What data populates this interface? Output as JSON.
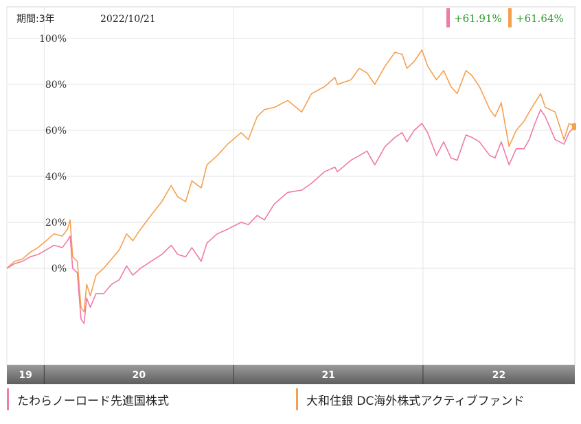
{
  "header": {
    "period_label": "期間:3年",
    "date": "2022/10/21"
  },
  "colors": {
    "series_pink": "#f07aa8",
    "series_orange": "#f5a04f",
    "returns_text": "#2a9a2a",
    "axis_band": "#7f7f7f",
    "grid": "#e3e3e3"
  },
  "chart_data": {
    "type": "line",
    "x_range": [
      "2019-10-21",
      "2022-10-21"
    ],
    "ylim": [
      -40,
      103
    ],
    "y_ticks": [
      0,
      20,
      40,
      60,
      80,
      100
    ],
    "y_tick_labels": [
      "0%",
      "20%",
      "40%",
      "60%",
      "80%",
      "100%"
    ],
    "x_ticks": [
      {
        "label": "19",
        "date": "2019-10-21"
      },
      {
        "label": "20",
        "date": "2020-01-01"
      },
      {
        "label": "21",
        "date": "2021-01-01"
      },
      {
        "label": "22",
        "date": "2022-01-01"
      }
    ],
    "grid": true,
    "series": [
      {
        "name": "たわらノーロード先進国株式",
        "color": "#f07aa8",
        "return_label": "+61.91%",
        "points": [
          [
            "2019-10-21",
            0
          ],
          [
            "2019-11-05",
            2
          ],
          [
            "2019-11-20",
            3
          ],
          [
            "2019-12-05",
            5
          ],
          [
            "2019-12-20",
            6
          ],
          [
            "2020-01-05",
            8
          ],
          [
            "2020-01-20",
            10
          ],
          [
            "2020-02-05",
            9
          ],
          [
            "2020-02-15",
            12
          ],
          [
            "2020-02-20",
            14
          ],
          [
            "2020-02-25",
            0
          ],
          [
            "2020-03-05",
            -2
          ],
          [
            "2020-03-12",
            -22
          ],
          [
            "2020-03-18",
            -24
          ],
          [
            "2020-03-23",
            -13
          ],
          [
            "2020-03-30",
            -17
          ],
          [
            "2020-04-10",
            -11
          ],
          [
            "2020-04-25",
            -11
          ],
          [
            "2020-05-10",
            -7
          ],
          [
            "2020-05-25",
            -5
          ],
          [
            "2020-06-08",
            1
          ],
          [
            "2020-06-20",
            -3
          ],
          [
            "2020-07-05",
            0
          ],
          [
            "2020-07-25",
            3
          ],
          [
            "2020-08-15",
            6
          ],
          [
            "2020-09-02",
            10
          ],
          [
            "2020-09-15",
            6
          ],
          [
            "2020-09-30",
            5
          ],
          [
            "2020-10-12",
            9
          ],
          [
            "2020-10-30",
            3
          ],
          [
            "2020-11-10",
            11
          ],
          [
            "2020-11-30",
            15
          ],
          [
            "2020-12-20",
            17
          ],
          [
            "2021-01-15",
            20
          ],
          [
            "2021-01-29",
            19
          ],
          [
            "2021-02-15",
            23
          ],
          [
            "2021-03-01",
            21
          ],
          [
            "2021-03-20",
            28
          ],
          [
            "2021-04-15",
            33
          ],
          [
            "2021-05-12",
            34
          ],
          [
            "2021-05-31",
            37
          ],
          [
            "2021-06-25",
            42
          ],
          [
            "2021-07-15",
            44
          ],
          [
            "2021-07-20",
            42
          ],
          [
            "2021-08-15",
            47
          ],
          [
            "2021-08-31",
            49
          ],
          [
            "2021-09-15",
            51
          ],
          [
            "2021-09-30",
            45
          ],
          [
            "2021-10-20",
            53
          ],
          [
            "2021-11-08",
            57
          ],
          [
            "2021-11-22",
            59
          ],
          [
            "2021-12-01",
            55
          ],
          [
            "2021-12-15",
            60
          ],
          [
            "2021-12-30",
            63
          ],
          [
            "2022-01-10",
            59
          ],
          [
            "2022-01-27",
            49
          ],
          [
            "2022-02-10",
            55
          ],
          [
            "2022-02-24",
            48
          ],
          [
            "2022-03-08",
            47
          ],
          [
            "2022-03-25",
            58
          ],
          [
            "2022-04-05",
            57
          ],
          [
            "2022-04-20",
            55
          ],
          [
            "2022-05-10",
            49
          ],
          [
            "2022-05-20",
            48
          ],
          [
            "2022-06-01",
            55
          ],
          [
            "2022-06-16",
            45
          ],
          [
            "2022-06-30",
            52
          ],
          [
            "2022-07-15",
            52
          ],
          [
            "2022-07-25",
            56
          ],
          [
            "2022-08-05",
            63
          ],
          [
            "2022-08-16",
            69
          ],
          [
            "2022-08-25",
            66
          ],
          [
            "2022-09-13",
            56
          ],
          [
            "2022-09-30",
            54
          ],
          [
            "2022-10-10",
            59
          ],
          [
            "2022-10-21",
            61.91
          ]
        ]
      },
      {
        "name": "大和住銀 DC海外株式アクティブファンド",
        "color": "#f5a04f",
        "return_label": "+61.64%",
        "points": [
          [
            "2019-10-21",
            0
          ],
          [
            "2019-11-05",
            3
          ],
          [
            "2019-11-20",
            4
          ],
          [
            "2019-12-05",
            7
          ],
          [
            "2019-12-20",
            9
          ],
          [
            "2020-01-05",
            12
          ],
          [
            "2020-01-20",
            15
          ],
          [
            "2020-02-05",
            14
          ],
          [
            "2020-02-15",
            17
          ],
          [
            "2020-02-20",
            21
          ],
          [
            "2020-02-25",
            5
          ],
          [
            "2020-03-05",
            3
          ],
          [
            "2020-03-12",
            -17
          ],
          [
            "2020-03-18",
            -19
          ],
          [
            "2020-03-23",
            -7
          ],
          [
            "2020-03-30",
            -12
          ],
          [
            "2020-04-10",
            -3
          ],
          [
            "2020-04-25",
            0
          ],
          [
            "2020-05-10",
            4
          ],
          [
            "2020-05-25",
            8
          ],
          [
            "2020-06-08",
            15
          ],
          [
            "2020-06-20",
            12
          ],
          [
            "2020-07-05",
            17
          ],
          [
            "2020-07-25",
            23
          ],
          [
            "2020-08-15",
            29
          ],
          [
            "2020-09-02",
            36
          ],
          [
            "2020-09-15",
            31
          ],
          [
            "2020-09-30",
            29
          ],
          [
            "2020-10-12",
            38
          ],
          [
            "2020-10-30",
            35
          ],
          [
            "2020-11-10",
            45
          ],
          [
            "2020-11-30",
            49
          ],
          [
            "2020-12-20",
            54
          ],
          [
            "2021-01-15",
            59
          ],
          [
            "2021-01-29",
            56
          ],
          [
            "2021-02-15",
            66
          ],
          [
            "2021-03-01",
            69
          ],
          [
            "2021-03-20",
            70
          ],
          [
            "2021-04-15",
            73
          ],
          [
            "2021-05-12",
            68
          ],
          [
            "2021-05-31",
            76
          ],
          [
            "2021-06-25",
            79
          ],
          [
            "2021-07-15",
            83
          ],
          [
            "2021-07-20",
            80
          ],
          [
            "2021-08-15",
            82
          ],
          [
            "2021-08-31",
            87
          ],
          [
            "2021-09-15",
            85
          ],
          [
            "2021-09-30",
            80
          ],
          [
            "2021-10-20",
            88
          ],
          [
            "2021-11-08",
            94
          ],
          [
            "2021-11-22",
            93
          ],
          [
            "2021-12-01",
            87
          ],
          [
            "2021-12-15",
            90
          ],
          [
            "2021-12-30",
            95
          ],
          [
            "2022-01-10",
            88
          ],
          [
            "2022-01-27",
            82
          ],
          [
            "2022-02-10",
            86
          ],
          [
            "2022-02-24",
            79
          ],
          [
            "2022-03-08",
            76
          ],
          [
            "2022-03-25",
            86
          ],
          [
            "2022-04-05",
            84
          ],
          [
            "2022-04-20",
            79
          ],
          [
            "2022-05-10",
            69
          ],
          [
            "2022-05-20",
            66
          ],
          [
            "2022-06-01",
            72
          ],
          [
            "2022-06-16",
            53
          ],
          [
            "2022-06-30",
            60
          ],
          [
            "2022-07-15",
            64
          ],
          [
            "2022-07-25",
            68
          ],
          [
            "2022-08-05",
            72
          ],
          [
            "2022-08-16",
            76
          ],
          [
            "2022-08-25",
            70
          ],
          [
            "2022-09-13",
            68
          ],
          [
            "2022-09-30",
            56
          ],
          [
            "2022-10-10",
            63
          ],
          [
            "2022-10-21",
            61.64
          ]
        ]
      }
    ]
  }
}
